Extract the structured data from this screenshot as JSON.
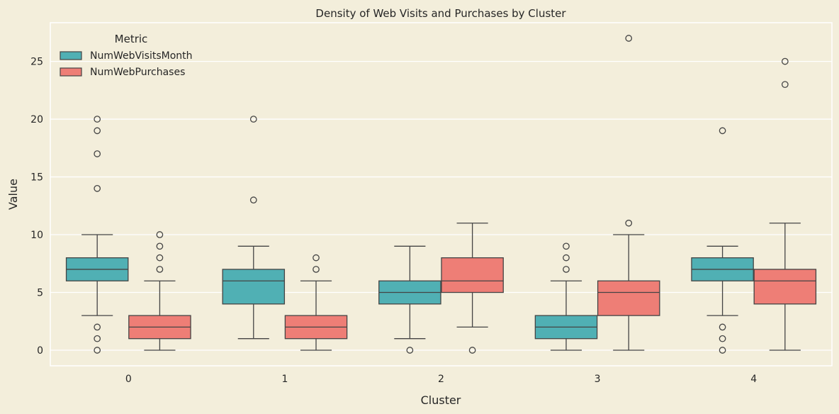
{
  "chart_data": {
    "type": "box",
    "title": "Density of Web Visits and Purchases by Cluster",
    "xlabel": "Cluster",
    "ylabel": "Value",
    "categories": [
      "0",
      "1",
      "2",
      "3",
      "4"
    ],
    "ylim": [
      -1.35,
      28.35
    ],
    "yticks": [
      0,
      5,
      10,
      15,
      20,
      25
    ],
    "grid": true,
    "legend": {
      "title": "Metric",
      "placement": "top-left"
    },
    "colors": {
      "background": "#f3eedb",
      "edge": "#444444",
      "grid": "#ffffff"
    },
    "series": [
      {
        "name": "NumWebVisitsMonth",
        "color": "#50b0b4",
        "boxes": [
          {
            "low": 3,
            "q1": 6,
            "median": 7,
            "q3": 8,
            "high": 10,
            "outliers": [
              20,
              19,
              17,
              14,
              2,
              1,
              0
            ]
          },
          {
            "low": 1,
            "q1": 4,
            "median": 6,
            "q3": 7,
            "high": 9,
            "outliers": [
              20,
              13
            ]
          },
          {
            "low": 1,
            "q1": 4,
            "median": 5,
            "q3": 6,
            "high": 9,
            "outliers": [
              0
            ]
          },
          {
            "low": 0,
            "q1": 1,
            "median": 2,
            "q3": 3,
            "high": 6,
            "outliers": [
              7,
              8,
              9
            ]
          },
          {
            "low": 3,
            "q1": 6,
            "median": 7,
            "q3": 8,
            "high": 9,
            "outliers": [
              19,
              2,
              1,
              0
            ]
          }
        ]
      },
      {
        "name": "NumWebPurchases",
        "color": "#ee7e76",
        "boxes": [
          {
            "low": 0,
            "q1": 1,
            "median": 2,
            "q3": 3,
            "high": 6,
            "outliers": [
              7,
              8,
              9,
              10
            ]
          },
          {
            "low": 0,
            "q1": 1,
            "median": 2,
            "q3": 3,
            "high": 6,
            "outliers": [
              7,
              8
            ]
          },
          {
            "low": 2,
            "q1": 5,
            "median": 6,
            "q3": 8,
            "high": 11,
            "outliers": [
              0
            ]
          },
          {
            "low": 0,
            "q1": 3,
            "median": 5,
            "q3": 6,
            "high": 10,
            "outliers": [
              11,
              27
            ]
          },
          {
            "low": 0,
            "q1": 4,
            "median": 6,
            "q3": 7,
            "high": 11,
            "outliers": [
              23,
              25
            ]
          }
        ]
      }
    ]
  }
}
